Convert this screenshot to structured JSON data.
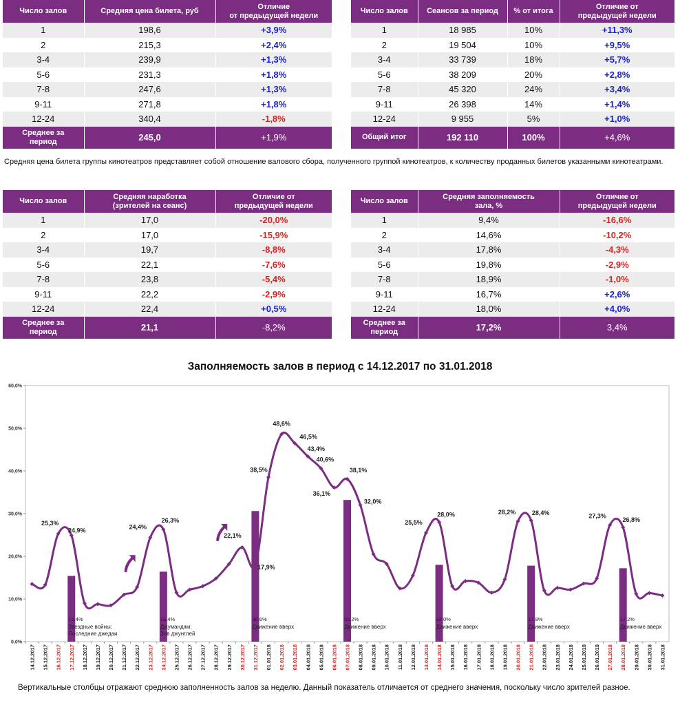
{
  "table1": {
    "headers": [
      "Число залов",
      "Средняя цена билета, руб",
      "Отличие\nот предыдущей недели"
    ],
    "rows": [
      [
        "1",
        "198,6",
        "+3,9%"
      ],
      [
        "2",
        "215,3",
        "+2,4%"
      ],
      [
        "3-4",
        "239,9",
        "+1,3%"
      ],
      [
        "5-6",
        "231,3",
        "+1,8%"
      ],
      [
        "7-8",
        "247,6",
        "+1,3%"
      ],
      [
        "9-11",
        "271,8",
        "+1,8%"
      ],
      [
        "12-24",
        "340,4",
        "-1,8%"
      ]
    ],
    "footer": [
      "Среднее за\nпериод",
      "245,0",
      "+1,9%"
    ]
  },
  "table2": {
    "headers": [
      "Число залов",
      "Сеансов за период",
      "% от итога",
      "Отличие от\nпредыдущей недели"
    ],
    "rows": [
      [
        "1",
        "18 985",
        "10%",
        "+11,3%"
      ],
      [
        "2",
        "19 504",
        "10%",
        "+9,5%"
      ],
      [
        "3-4",
        "33 739",
        "18%",
        "+5,7%"
      ],
      [
        "5-6",
        "38 209",
        "20%",
        "+2,8%"
      ],
      [
        "7-8",
        "45 320",
        "24%",
        "+3,4%"
      ],
      [
        "9-11",
        "26 398",
        "14%",
        "+1,4%"
      ],
      [
        "12-24",
        "9 955",
        "5%",
        "+1,0%"
      ]
    ],
    "footer": [
      "Общий итог",
      "192 110",
      "100%",
      "+4,6%"
    ]
  },
  "note": "Средняя цена билета группы кинотеатров представляет собой отношение валового сбора, полученного группой кинотеатров, к количеству проданных билетов указанными кинотеатрами.",
  "table3": {
    "headers": [
      "Число залов",
      "Средняя наработка\n(зрителей на сеанс)",
      "Отличие от\nпредыдущей недели"
    ],
    "rows": [
      [
        "1",
        "17,0",
        "-20,0%"
      ],
      [
        "2",
        "17,0",
        "-15,9%"
      ],
      [
        "3-4",
        "19,7",
        "-8,8%"
      ],
      [
        "5-6",
        "22,1",
        "-7,6%"
      ],
      [
        "7-8",
        "23,8",
        "-5,4%"
      ],
      [
        "9-11",
        "22,2",
        "-2,9%"
      ],
      [
        "12-24",
        "22,4",
        "+0,5%"
      ]
    ],
    "footer": [
      "Среднее за\nпериод",
      "21,1",
      "-8,2%"
    ]
  },
  "table4": {
    "headers": [
      "Число залов",
      "Средняя заполняемость\nзала, %",
      "Отличие от\nпредыдущей недели"
    ],
    "rows": [
      [
        "1",
        "9,4%",
        "-16,6%"
      ],
      [
        "2",
        "14,6%",
        "-10,2%"
      ],
      [
        "3-4",
        "17,8%",
        "-4,3%"
      ],
      [
        "5-6",
        "19,8%",
        "-2,9%"
      ],
      [
        "7-8",
        "18,9%",
        "-1,0%"
      ],
      [
        "9-11",
        "16,7%",
        "+2,6%"
      ],
      [
        "12-24",
        "18,0%",
        "+4,0%"
      ]
    ],
    "footer": [
      "Среднее за\nпериод",
      "17,2%",
      "3,4%"
    ]
  },
  "colors": {
    "accent": "#7b2d82",
    "positive": "#1a1fcc",
    "negative": "#d8221f",
    "highlight_date": "#d8221f"
  },
  "footnote": "Вертикальные столбцы отражают среднюю заполненность залов за неделю. Данный показатель отличается от среднего значения, поскольку число зрителей разное.",
  "chart_data": {
    "type": "line",
    "title": "Заполняемость залов в период с 14.12.2017 по 31.01.2018",
    "ylim": [
      0,
      60
    ],
    "y_ticks": [
      "0,0%",
      "10,0%",
      "20,0%",
      "30,0%",
      "40,0%",
      "50,0%",
      "60,0%"
    ],
    "categories": [
      "14.12.2017",
      "15.12.2017",
      "16.12.2017",
      "17.12.2017",
      "18.12.2017",
      "19.12.2017",
      "20.12.2017",
      "21.12.2017",
      "22.12.2017",
      "23.12.2017",
      "24.12.2017",
      "25.12.2017",
      "26.12.2017",
      "27.12.2017",
      "28.12.2017",
      "29.12.2017",
      "30.12.2017",
      "31.12.2017",
      "01.01.2018",
      "02.01.2018",
      "03.01.2018",
      "04.01.2018",
      "05.01.2018",
      "06.01.2018",
      "07.01.2018",
      "08.01.2018",
      "09.01.2018",
      "10.01.2018",
      "11.01.2018",
      "12.01.2018",
      "13.01.2018",
      "14.01.2018",
      "15.01.2018",
      "16.01.2018",
      "17.01.2018",
      "18.01.2018",
      "19.01.2018",
      "20.01.2018",
      "21.01.2018",
      "22.01.2018",
      "23.01.2018",
      "24.01.2018",
      "25.01.2018",
      "26.01.2018",
      "27.01.2018",
      "28.01.2018",
      "29.01.2018",
      "30.01.2018",
      "31.01.2018"
    ],
    "highlighted_categories": [
      "16.12.2017",
      "17.12.2017",
      "23.12.2017",
      "24.12.2017",
      "30.12.2017",
      "31.12.2017",
      "02.01.2018",
      "03.01.2018",
      "06.01.2018",
      "07.01.2018",
      "13.01.2018",
      "14.01.2018",
      "20.01.2018",
      "21.01.2018",
      "27.01.2018",
      "28.01.2018"
    ],
    "series": [
      {
        "values": [
          13.5,
          13.3,
          25.3,
          24.9,
          9.0,
          8.8,
          8.5,
          11.0,
          12.8,
          24.4,
          26.3,
          11.5,
          12.2,
          13.0,
          14.8,
          18.2,
          22.1,
          17.9,
          38.5,
          48.6,
          46.5,
          43.4,
          40.6,
          36.1,
          38.1,
          32.0,
          20.5,
          18.2,
          12.5,
          15.5,
          25.5,
          28.0,
          13.0,
          14.2,
          13.8,
          11.5,
          14.6,
          28.2,
          28.4,
          12.0,
          12.6,
          12.2,
          13.6,
          14.8,
          27.3,
          26.8,
          11.2,
          11.4,
          10.8
        ]
      }
    ],
    "point_labels": [
      {
        "index": 2,
        "text": "25,3%"
      },
      {
        "index": 3,
        "text": "24,9%"
      },
      {
        "index": 9,
        "text": "24,4%"
      },
      {
        "index": 10,
        "text": "26,3%"
      },
      {
        "index": 16,
        "text": "22,1%"
      },
      {
        "index": 17,
        "text": "17,9%"
      },
      {
        "index": 18,
        "text": "38,5%"
      },
      {
        "index": 19,
        "text": "48,6%"
      },
      {
        "index": 20,
        "text": "46,5%"
      },
      {
        "index": 21,
        "text": "43,4%"
      },
      {
        "index": 22,
        "text": "40,6%"
      },
      {
        "index": 23,
        "text": "36,1%"
      },
      {
        "index": 24,
        "text": "38,1%"
      },
      {
        "index": 25,
        "text": "32,0%"
      },
      {
        "index": 30,
        "text": "25,5%"
      },
      {
        "index": 31,
        "text": "28,0%"
      },
      {
        "index": 37,
        "text": "28,2%"
      },
      {
        "index": 38,
        "text": "28,4%"
      },
      {
        "index": 44,
        "text": "27,3%"
      },
      {
        "index": 45,
        "text": "26,8%"
      }
    ],
    "bars": [
      {
        "index": 3,
        "value": 15.4,
        "label": "15,4%",
        "caption": [
          "Звездные войны:",
          "Последние джедаи"
        ]
      },
      {
        "index": 10,
        "value": 16.4,
        "label": "16,4%",
        "caption": [
          "Джуманджи:",
          "Зов джунглей"
        ]
      },
      {
        "index": 17,
        "value": 30.6,
        "label": "30,6%",
        "caption": [
          "Движение вверх"
        ]
      },
      {
        "index": 24,
        "value": 33.2,
        "label": "33,2%",
        "caption": [
          "Движение вверх"
        ]
      },
      {
        "index": 31,
        "value": 18.0,
        "label": "18,0%",
        "caption": [
          "Движение вверх"
        ]
      },
      {
        "index": 38,
        "value": 17.8,
        "label": "17,8%",
        "caption": [
          "Движение вверх"
        ]
      },
      {
        "index": 45,
        "value": 17.2,
        "label": "17,2%",
        "caption": [
          "Движение вверх"
        ]
      }
    ],
    "trend_arrows": [
      {
        "index": 7.0,
        "value": 18.5
      },
      {
        "index": 14.0,
        "value": 25.8
      }
    ],
    "grid": false
  }
}
